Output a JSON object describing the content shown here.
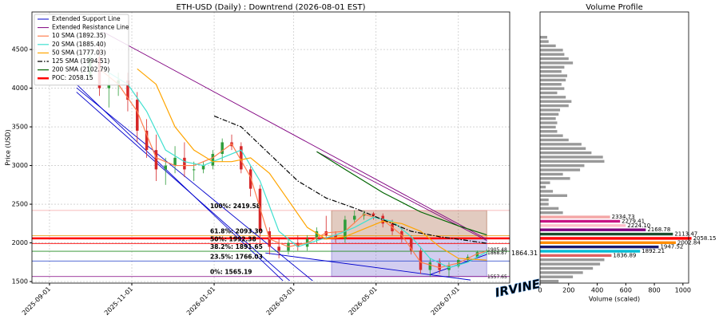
{
  "chart_data": [
    {
      "type": "candlestick",
      "title": "ETH-USD (Daily) : Downtrend (2026-08-01 EST)",
      "ylabel": "Price (USD)",
      "xlim": [
        "2025-08-19",
        "2026-08-08"
      ],
      "xticks": [
        "2025-09-01",
        "2025-11-01",
        "2026-01-01",
        "2026-03-01",
        "2026-05-01",
        "2026-07-01"
      ],
      "ylim": [
        1480,
        4985
      ],
      "yticks": [
        1500,
        2000,
        2500,
        3000,
        3500,
        4000,
        4500
      ],
      "grid": true,
      "up_color": "#2e9d3a",
      "down_color": "#d62728",
      "candles": {
        "x": [
          "2025-10-01",
          "2025-10-08",
          "2025-10-15",
          "2025-10-22",
          "2025-10-29",
          "2025-11-05",
          "2025-11-12",
          "2025-11-19",
          "2025-11-26",
          "2025-12-03",
          "2025-12-10",
          "2025-12-17",
          "2025-12-24",
          "2025-12-31",
          "2026-01-07",
          "2026-01-14",
          "2026-01-21",
          "2026-01-28",
          "2026-02-04",
          "2026-02-11",
          "2026-02-18",
          "2026-02-25",
          "2026-03-04",
          "2026-03-11",
          "2026-03-18",
          "2026-03-25",
          "2026-04-01",
          "2026-04-08",
          "2026-04-15",
          "2026-04-22",
          "2026-04-29",
          "2026-05-06",
          "2026-05-13",
          "2026-05-20",
          "2026-05-27",
          "2026-06-03",
          "2026-06-10",
          "2026-06-17",
          "2026-06-24",
          "2026-07-01",
          "2026-07-08",
          "2026-07-15",
          "2026-07-22"
        ],
        "open": [
          4150,
          4400,
          4000,
          4050,
          4100,
          3850,
          3450,
          3200,
          2950,
          3000,
          3100,
          2950,
          2950,
          3000,
          3150,
          3300,
          3250,
          2950,
          2700,
          2150,
          1950,
          1900,
          2000,
          1950,
          2050,
          2150,
          2100,
          2050,
          2300,
          2350,
          2380,
          2350,
          2250,
          2150,
          2050,
          1900,
          1650,
          1750,
          1650,
          1700,
          1780,
          1820,
          1880
        ],
        "high": [
          4480,
          4550,
          4250,
          4200,
          4200,
          3950,
          3600,
          3400,
          3100,
          3250,
          3300,
          3050,
          3050,
          3200,
          3350,
          3400,
          3300,
          3000,
          2750,
          2200,
          2050,
          2050,
          2100,
          2100,
          2200,
          2350,
          2150,
          2350,
          2420,
          2420,
          2400,
          2380,
          2300,
          2200,
          2100,
          1950,
          1800,
          1800,
          1750,
          1800,
          1850,
          1900,
          1920
        ],
        "low": [
          4100,
          3900,
          3750,
          3900,
          3700,
          3300,
          3100,
          2800,
          2750,
          2900,
          2850,
          2800,
          2900,
          2950,
          3050,
          3200,
          2900,
          2600,
          2000,
          1850,
          1800,
          1850,
          1900,
          1900,
          2000,
          2050,
          2000,
          2000,
          2250,
          2300,
          2300,
          2200,
          2100,
          2000,
          1850,
          1600,
          1560,
          1600,
          1560,
          1680,
          1750,
          1800,
          1850
        ],
        "close": [
          4400,
          4000,
          4050,
          4100,
          3850,
          3450,
          3200,
          2950,
          3000,
          3100,
          2950,
          2950,
          3000,
          3150,
          3300,
          3250,
          2950,
          2700,
          2150,
          1950,
          1900,
          2000,
          1950,
          2050,
          2150,
          2100,
          2050,
          2300,
          2350,
          2380,
          2350,
          2250,
          2150,
          2050,
          1900,
          1650,
          1750,
          1650,
          1700,
          1780,
          1820,
          1880,
          1900
        ]
      },
      "zones": [
        {
          "x": [
            "2026-03-29",
            "2026-07-22"
          ],
          "y": [
            2058.15,
            2419.58
          ],
          "color": "#a0522d"
        },
        {
          "x": [
            "2026-03-29",
            "2026-07-22"
          ],
          "y": [
            1565.19,
            2058.15
          ],
          "color": "#6a5acd"
        }
      ],
      "trend_lines": [
        {
          "name": "Extended Support Line",
          "color": "#0000cd",
          "segments": [
            {
              "x": [
                "2025-09-21",
                "2026-03-15"
              ],
              "y": [
                4005,
                1510
              ]
            },
            {
              "x": [
                "2025-09-21",
                "2026-02-21"
              ],
              "y": [
                4050,
                1510
              ]
            },
            {
              "x": [
                "2025-09-21",
                "2026-02-26"
              ],
              "y": [
                3950,
                1510
              ]
            },
            {
              "x": [
                "2026-02-08",
                "2026-07-10"
              ],
              "y": [
                1870,
                1520
              ]
            },
            {
              "x": [
                "2026-06-10",
                "2026-07-22"
              ],
              "y": [
                1590,
                1850
              ]
            }
          ]
        },
        {
          "name": "Extended Resistance Line",
          "color": "#800080",
          "segments": [
            {
              "x": [
                "2025-10-11",
                "2026-07-22"
              ],
              "y": [
                4725,
                2047
              ]
            },
            {
              "x": [
                "2026-03-18",
                "2026-07-22"
              ],
              "y": [
                3180,
                2030
              ]
            }
          ]
        }
      ],
      "sma": [
        {
          "name": "10 SMA (1892.35)",
          "color": "#ff7f50",
          "dash": "",
          "x": [
            "2025-10-08",
            "2025-10-22",
            "2025-11-05",
            "2025-11-19",
            "2025-12-03",
            "2025-12-17",
            "2025-12-31",
            "2026-01-14",
            "2026-01-28",
            "2026-02-11",
            "2026-02-25",
            "2026-03-11",
            "2026-03-25",
            "2026-04-08",
            "2026-04-22",
            "2026-05-06",
            "2026-05-20",
            "2026-06-03",
            "2026-06-17",
            "2026-07-01",
            "2026-07-15",
            "2026-07-22"
          ],
          "values": [
            4250,
            4050,
            3700,
            3100,
            3000,
            3000,
            3100,
            3280,
            2850,
            2050,
            1950,
            2000,
            2130,
            2150,
            2370,
            2300,
            2100,
            1750,
            1680,
            1740,
            1860,
            1892.35
          ]
        },
        {
          "name": "20 SMA (1885.40)",
          "color": "#40e0d0",
          "dash": "",
          "x": [
            "2025-10-15",
            "2025-10-29",
            "2025-11-12",
            "2025-11-26",
            "2025-12-10",
            "2025-12-24",
            "2026-01-07",
            "2026-01-21",
            "2026-02-04",
            "2026-02-18",
            "2026-03-04",
            "2026-03-18",
            "2026-04-01",
            "2026-04-15",
            "2026-04-29",
            "2026-05-13",
            "2026-05-27",
            "2026-06-10",
            "2026-06-24",
            "2026-07-08",
            "2026-07-22"
          ],
          "values": [
            4200,
            4050,
            3700,
            3200,
            3050,
            3000,
            3100,
            3200,
            2800,
            2150,
            1950,
            2030,
            2100,
            2200,
            2330,
            2280,
            2080,
            1800,
            1680,
            1750,
            1885.4
          ]
        },
        {
          "name": "50 SMA (1777.03)",
          "color": "#ffa500",
          "dash": "",
          "x": [
            "2025-11-05",
            "2025-11-19",
            "2025-12-03",
            "2025-12-17",
            "2025-12-31",
            "2026-01-14",
            "2026-01-28",
            "2026-02-11",
            "2026-02-25",
            "2026-03-11",
            "2026-03-25",
            "2026-04-08",
            "2026-04-22",
            "2026-05-06",
            "2026-05-20",
            "2026-06-03",
            "2026-06-17",
            "2026-07-01",
            "2026-07-22"
          ],
          "values": [
            4250,
            4050,
            3500,
            3200,
            3050,
            3050,
            3100,
            2900,
            2550,
            2200,
            2050,
            2080,
            2180,
            2280,
            2250,
            2150,
            1950,
            1800,
            1777.03
          ]
        },
        {
          "name": "125 SMA (1994.51)",
          "color": "#000000",
          "dash": "6 2 1.5 2",
          "x": [
            "2026-01-01",
            "2026-01-21",
            "2026-02-11",
            "2026-03-04",
            "2026-03-25",
            "2026-04-15",
            "2026-05-06",
            "2026-05-27",
            "2026-06-17",
            "2026-07-08",
            "2026-07-22"
          ],
          "values": [
            3640,
            3500,
            3150,
            2800,
            2580,
            2450,
            2300,
            2150,
            2080,
            2030,
            1994.51
          ]
        },
        {
          "name": "200 SMA (2102.79)",
          "color": "#006400",
          "dash": "",
          "x": [
            "2026-03-18",
            "2026-04-08",
            "2026-05-06",
            "2026-06-03",
            "2026-07-01",
            "2026-07-22"
          ],
          "values": [
            3180,
            2950,
            2650,
            2400,
            2220,
            2102.79
          ]
        }
      ],
      "poc": {
        "label": "POC: 2058.15",
        "value": 2058.15,
        "color": "#ff0000"
      },
      "fib_levels": [
        {
          "label": "100%: 2419.58",
          "value": 2419.58,
          "color": "#f4a6a6"
        },
        {
          "label": "61.8%: 2093.30",
          "value": 2093.3,
          "color": "#e69500"
        },
        {
          "label": "50%: 1992.38",
          "value": 1992.38,
          "color": "#ff0000"
        },
        {
          "label": "38.2%: 1891.65",
          "value": 1891.65,
          "color": "#228b22"
        },
        {
          "label": "23.5%: 1766.03",
          "value": 1766.03,
          "color": "#1e3cc8"
        },
        {
          "label": "0%: 1565.19",
          "value": 1565.19,
          "color": "#800080"
        }
      ],
      "price_labels": [
        {
          "text": "1905.48",
          "value": 1905.48,
          "color": "#800080"
        },
        {
          "text": "1868.87",
          "value": 1868.87,
          "color": "#800080"
        },
        {
          "text": "1557.65",
          "value": 1557.65,
          "color": "#0000cd"
        }
      ],
      "last_price": {
        "text": "1864.31",
        "value": 1864.31
      },
      "watermark": "IRVINE"
    },
    {
      "type": "volume_profile",
      "title": "Volume Profile",
      "xlabel": "Volume (scaled)",
      "xlim": [
        0,
        1040
      ],
      "xticks": [
        0,
        200,
        400,
        600,
        800,
        1000
      ],
      "ylim": [
        1480,
        4985
      ],
      "color": "#999999",
      "levels": [
        1505.0,
        1560.32,
        1615.63,
        1670.95,
        1726.26,
        1781.58,
        1836.89,
        1892.21,
        1947.52,
        2002.84,
        2058.15,
        2113.47,
        2168.78,
        2224.1,
        2279.41,
        2334.73,
        2390.04,
        2445.36,
        2500.67,
        2555.99,
        2611.3,
        2666.62,
        2721.93,
        2777.25,
        2832.56,
        2887.88,
        2943.19,
        2998.51,
        3053.82,
        3109.14,
        3164.45,
        3219.77,
        3275.08,
        3330.4,
        3385.71,
        3441.03,
        3496.34,
        3551.66,
        3606.97,
        3662.29,
        3717.6,
        3772.92,
        3828.23,
        3883.55,
        3938.86,
        3994.18,
        4049.49,
        4104.81,
        4160.12,
        4215.44,
        4270.75,
        4326.07,
        4381.38,
        4436.7,
        4492.01,
        4547.33,
        4602.64,
        4657.95
      ],
      "values": [
        130,
        230,
        300,
        370,
        420,
        450,
        500,
        700,
        830,
        950,
        1060,
        930,
        740,
        600,
        560,
        490,
        160,
        130,
        60,
        60,
        190,
        90,
        40,
        70,
        210,
        160,
        280,
        310,
        450,
        440,
        360,
        320,
        290,
        200,
        160,
        120,
        110,
        120,
        110,
        130,
        140,
        200,
        220,
        180,
        120,
        170,
        150,
        180,
        190,
        150,
        170,
        230,
        200,
        170,
        160,
        110,
        60,
        50
      ],
      "highlights": [
        {
          "level": 2334.73,
          "label": "2334.73",
          "color": "#f4a6a6"
        },
        {
          "level": 2279.41,
          "label": "2279.41",
          "color": "#c71585"
        },
        {
          "level": 2224.1,
          "label": "2224.10",
          "color": "#ffc0cb"
        },
        {
          "level": 2168.78,
          "label": "2168.78",
          "color": "#800080"
        },
        {
          "level": 2113.47,
          "label": "2113.47",
          "color": "#1b4d2e"
        },
        {
          "level": 2058.15,
          "label": "2058.15",
          "color": "#ff0000"
        },
        {
          "level": 2002.84,
          "label": "2002.84",
          "color": "#ff8c00"
        },
        {
          "level": 1947.52,
          "label": "1947.52",
          "color": "#191970"
        },
        {
          "level": 1892.21,
          "label": "1892.21",
          "color": "#00bcd4"
        },
        {
          "level": 1836.89,
          "label": "1836.89",
          "color": "#e06060"
        }
      ]
    }
  ]
}
